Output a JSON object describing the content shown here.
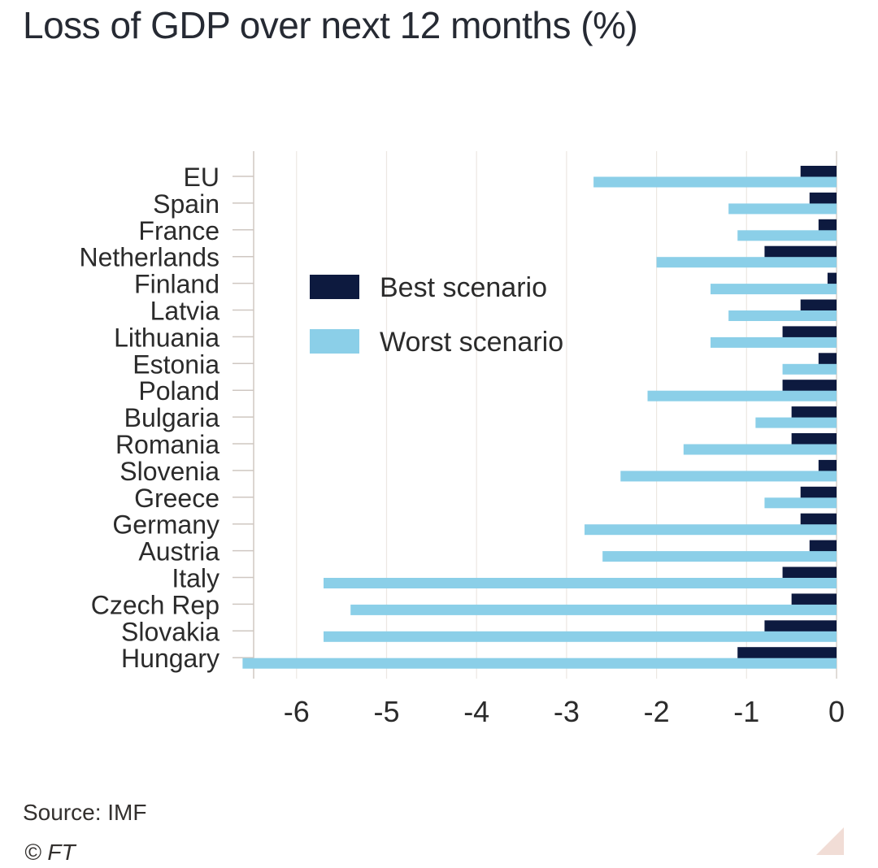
{
  "chart_data": {
    "type": "bar",
    "orientation": "horizontal",
    "title": "Loss of GDP over next 12 months (%)",
    "categories": [
      "EU",
      "Spain",
      "France",
      "Netherlands",
      "Finland",
      "Latvia",
      "Lithuania",
      "Estonia",
      "Poland",
      "Bulgaria",
      "Romania",
      "Slovenia",
      "Greece",
      "Germany",
      "Austria",
      "Italy",
      "Czech Rep",
      "Slovakia",
      "Hungary"
    ],
    "series": [
      {
        "name": "Best scenario",
        "color": "#0d1a3f",
        "values": [
          -0.4,
          -0.3,
          -0.2,
          -0.8,
          -0.1,
          -0.4,
          -0.6,
          -0.2,
          -0.6,
          -0.5,
          -0.5,
          -0.2,
          -0.4,
          -0.4,
          -0.3,
          -0.6,
          -0.5,
          -0.8,
          -1.1
        ]
      },
      {
        "name": "Worst scenario",
        "color": "#8bcfe8",
        "values": [
          -2.7,
          -1.2,
          -1.1,
          -2.0,
          -1.4,
          -1.2,
          -1.4,
          -0.6,
          -2.1,
          -0.9,
          -1.7,
          -2.4,
          -0.8,
          -2.8,
          -2.6,
          -5.7,
          -5.4,
          -5.7,
          -6.6
        ]
      }
    ],
    "xlim": [
      -6.6,
      0
    ],
    "xticks": [
      -6,
      -5,
      -4,
      -3,
      -2,
      -1,
      0
    ],
    "xtick_labels": [
      "-6",
      "-5",
      "-4",
      "-3",
      "-2",
      "-1",
      "0"
    ],
    "legend_position": "top-center",
    "grid": true
  },
  "source": "Source: IMF",
  "copyright": "© FT"
}
